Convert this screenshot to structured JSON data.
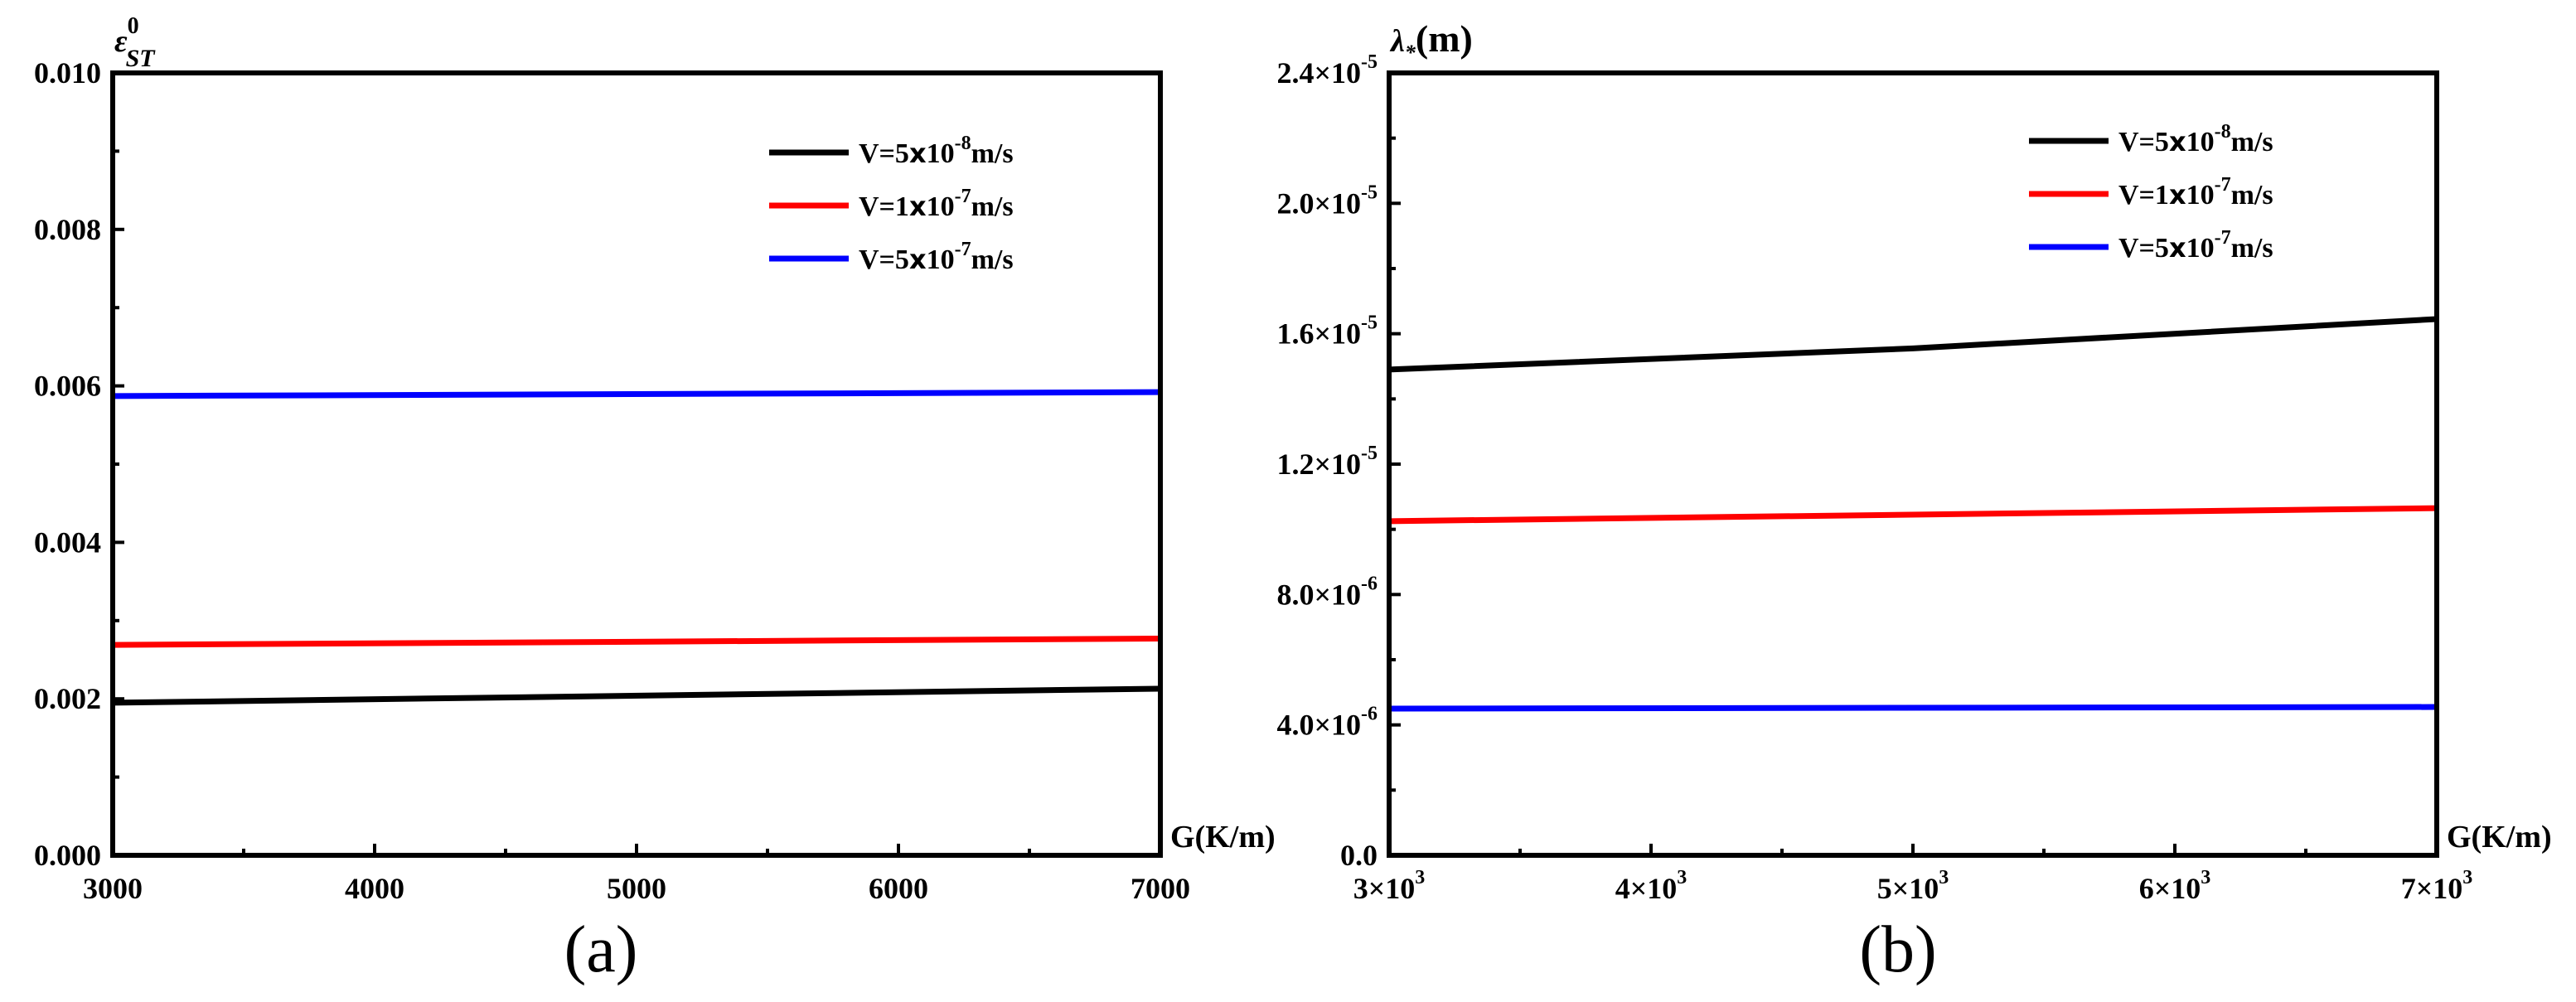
{
  "chart_data": [
    {
      "type": "line",
      "panel_label": "(a)",
      "ylabel": {
        "main": "ε",
        "sub": "ST",
        "sup": "0"
      },
      "xlabel": "G(K/m)",
      "xlim": [
        3000,
        7000
      ],
      "ylim": [
        0,
        0.01
      ],
      "x_ticks": [
        3000,
        4000,
        5000,
        6000,
        7000
      ],
      "x_tick_labels": [
        "3000",
        "4000",
        "5000",
        "6000",
        "7000"
      ],
      "y_ticks": [
        0,
        0.002,
        0.004,
        0.006,
        0.008,
        0.01
      ],
      "y_tick_labels": [
        "0.000",
        "0.002",
        "0.004",
        "0.006",
        "0.008",
        "0.010"
      ],
      "legend_position": "top-right",
      "series": [
        {
          "name": "V=5x10-8m/s",
          "legend": {
            "pre": "V=5",
            "x": "x",
            "mid": "10",
            "sup": "-8",
            "post": "m/s"
          },
          "color": "#000000",
          "x": [
            3000,
            7000
          ],
          "y": [
            0.00195,
            0.00213
          ]
        },
        {
          "name": "V=1x10-7m/s",
          "legend": {
            "pre": "V=1",
            "x": "x",
            "mid": "10",
            "sup": "-7",
            "post": "m/s"
          },
          "color": "#ff0000",
          "x": [
            3000,
            7000
          ],
          "y": [
            0.00269,
            0.00277
          ]
        },
        {
          "name": "V=5x10-7m/s",
          "legend": {
            "pre": "V=5",
            "x": "x",
            "mid": "10",
            "sup": "-7",
            "post": "m/s"
          },
          "color": "#0000ff",
          "x": [
            3000,
            7000
          ],
          "y": [
            0.00587,
            0.00592
          ]
        }
      ]
    },
    {
      "type": "line",
      "panel_label": "(b)",
      "ylabel": {
        "main": "λ",
        "sub": "*",
        "post": "(m)"
      },
      "xlabel": "G(K/m)",
      "xlim": [
        3000,
        7000
      ],
      "ylim": [
        0,
        2.4e-05
      ],
      "x_ticks": [
        3000,
        4000,
        5000,
        6000,
        7000
      ],
      "x_tick_labels": [
        {
          "base": "3×10",
          "exp": "3"
        },
        {
          "base": "4×10",
          "exp": "3"
        },
        {
          "base": "5×10",
          "exp": "3"
        },
        {
          "base": "6×10",
          "exp": "3"
        },
        {
          "base": "7×10",
          "exp": "3"
        }
      ],
      "y_ticks": [
        0,
        4e-06,
        8e-06,
        1.2e-05,
        1.6e-05,
        2e-05,
        2.4e-05
      ],
      "y_tick_labels": [
        {
          "base": "0.0",
          "exp": ""
        },
        {
          "base": "4.0×10",
          "exp": "-6"
        },
        {
          "base": "8.0×10",
          "exp": "-6"
        },
        {
          "base": "1.2×10",
          "exp": "-5"
        },
        {
          "base": "1.6×10",
          "exp": "-5"
        },
        {
          "base": "2.0×10",
          "exp": "-5"
        },
        {
          "base": "2.4×10",
          "exp": "-5"
        }
      ],
      "legend_position": "top-right",
      "series": [
        {
          "name": "V=5x10-8m/s",
          "legend": {
            "pre": "V=5",
            "x": "x",
            "mid": "10",
            "sup": "-8",
            "post": "m/s"
          },
          "color": "#000000",
          "x": [
            3000,
            5000,
            7000
          ],
          "y": [
            1.49e-05,
            1.555e-05,
            1.645e-05
          ]
        },
        {
          "name": "V=1x10-7m/s",
          "legend": {
            "pre": "V=1",
            "x": "x",
            "mid": "10",
            "sup": "-7",
            "post": "m/s"
          },
          "color": "#ff0000",
          "x": [
            3000,
            7000
          ],
          "y": [
            1.025e-05,
            1.065e-05
          ]
        },
        {
          "name": "V=5x10-7m/s",
          "legend": {
            "pre": "V=5",
            "x": "x",
            "mid": "10",
            "sup": "-7",
            "post": "m/s"
          },
          "color": "#0000ff",
          "x": [
            3000,
            7000
          ],
          "y": [
            4.5e-06,
            4.55e-06
          ]
        }
      ]
    }
  ]
}
